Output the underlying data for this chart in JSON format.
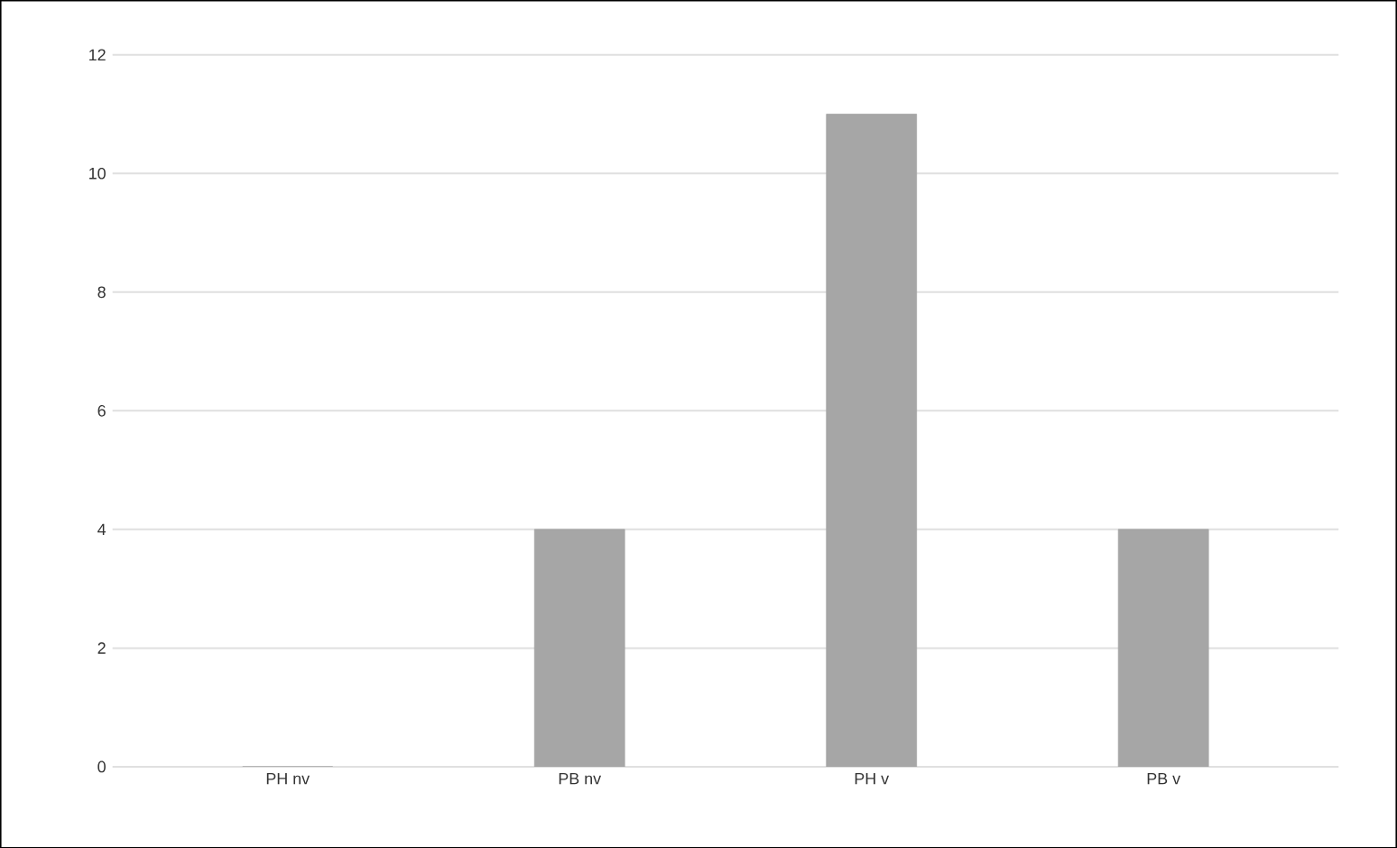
{
  "chart_data": {
    "type": "bar",
    "categories": [
      "PH nv",
      "PB nv",
      "PH v",
      "PB v"
    ],
    "values": [
      0,
      4,
      11,
      4
    ],
    "color": "#a6a6a6",
    "ylim": [
      0,
      12
    ],
    "yticks": [
      0,
      2,
      4,
      6,
      8,
      10,
      12
    ],
    "grid": "y"
  }
}
